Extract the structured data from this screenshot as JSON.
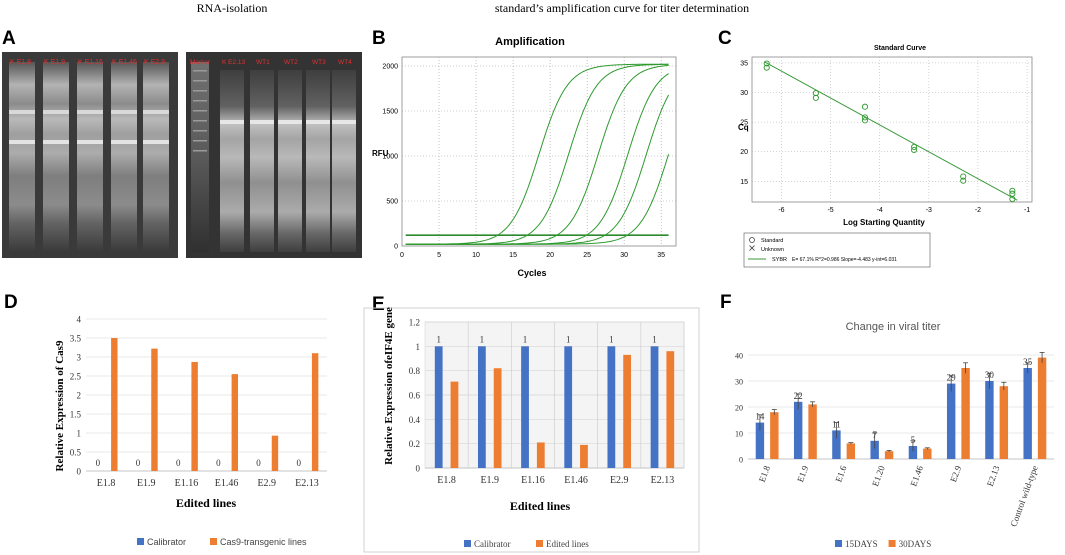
{
  "headers": {
    "rna": "RNA-isolation",
    "standard": "standard’s amplification curve for titer determination"
  },
  "panel_letters": [
    "A",
    "B",
    "C",
    "D",
    "E",
    "F"
  ],
  "gel": {
    "left_lane_labels": [
      "K E1.8",
      "K E1.9",
      "K E1.16",
      "K E1.46",
      "K E2.9"
    ],
    "right_lane_labels": [
      "Marker",
      "K E2.13",
      "WT1",
      "WT2",
      "WT3",
      "WT4"
    ]
  },
  "chart_data": [
    {
      "id": "B",
      "type": "line",
      "title": "Amplification",
      "xlabel": "Cycles",
      "ylabel": "RFU",
      "xlim": [
        0,
        37
      ],
      "ylim": [
        0,
        2100
      ],
      "xticks": [
        0,
        5,
        10,
        15,
        20,
        25,
        30,
        35
      ],
      "yticks": [
        0,
        500,
        1000,
        1500,
        2000
      ],
      "threshold": 120,
      "series_midpoints": [
        18.5,
        22.5,
        26.5,
        30.5,
        33.0,
        36.0
      ],
      "series_plateau": 2020
    },
    {
      "id": "C",
      "type": "scatter",
      "title": "Standard Curve",
      "xlabel": "Log Starting Quantity",
      "ylabel": "Cq",
      "xlim": [
        -6.6,
        -0.9
      ],
      "ylim": [
        11.5,
        36
      ],
      "xticks": [
        -6,
        -5,
        -4,
        -3,
        -2,
        -1
      ],
      "yticks": [
        15,
        20,
        25,
        30,
        35
      ],
      "points": [
        [
          -6.3,
          34.9
        ],
        [
          -6.3,
          34.2
        ],
        [
          -5.3,
          29.9
        ],
        [
          -5.3,
          29.1
        ],
        [
          -4.3,
          27.6
        ],
        [
          -4.3,
          25.8
        ],
        [
          -4.3,
          25.3
        ],
        [
          -3.3,
          20.8
        ],
        [
          -3.3,
          20.3
        ],
        [
          -2.3,
          15.8
        ],
        [
          -2.3,
          15.1
        ],
        [
          -1.3,
          13.4
        ],
        [
          -1.3,
          12.9
        ],
        [
          -1.3,
          12.0
        ]
      ],
      "fit": [
        [
          -6.35,
          35.2
        ],
        [
          -1.2,
          11.8
        ]
      ],
      "legend": {
        "standard": "Standard",
        "unknown": "Unknown",
        "fit_name": "SYBR",
        "fit_text": "E= 67.1% R^2=0.986 Slope=-4.483 y-int=6.031"
      }
    },
    {
      "id": "D",
      "type": "bar",
      "xlabel": "Edited lines",
      "ylabel": "Relative Expression of Cas9",
      "ylim": [
        0,
        4
      ],
      "yticks": [
        "0",
        "0.5",
        "1",
        "1.5",
        "2",
        "2.5",
        "3",
        "3.5",
        "4"
      ],
      "categories": [
        "E1.8",
        "E1.9",
        "E1.16",
        "E1.46",
        "E2.9",
        "E2.13"
      ],
      "series": [
        {
          "name": "Calibrator",
          "color": "#4472C4",
          "values": [
            0,
            0,
            0,
            0,
            0,
            0
          ],
          "labels": [
            "0",
            "0",
            "0",
            "0",
            "0",
            "0"
          ]
        },
        {
          "name": "Cas9-transgenic lines",
          "color": "#ED7D31",
          "values": [
            3.5,
            3.22,
            2.87,
            2.55,
            0.93,
            3.1
          ]
        }
      ]
    },
    {
      "id": "E",
      "type": "bar",
      "xlabel": "Edited lines",
      "ylabel": "Relative Expression ofeIF4E gene",
      "ylim": [
        0,
        1.2
      ],
      "yticks": [
        "0",
        "0.2",
        "0.4",
        "0.6",
        "0.8",
        "1",
        "1.2"
      ],
      "categories": [
        "E1.8",
        "E1.9",
        "E1.16",
        "E1.46",
        "E2.9",
        "E2.13"
      ],
      "series": [
        {
          "name": "Calibrator",
          "color": "#4472C4",
          "values": [
            1,
            1,
            1,
            1,
            1,
            1
          ],
          "labels": [
            "1",
            "1",
            "1",
            "1",
            "1",
            "1"
          ]
        },
        {
          "name": "Edited lines",
          "color": "#ED7D31",
          "values": [
            0.71,
            0.82,
            0.21,
            0.19,
            0.93,
            0.96
          ]
        }
      ]
    },
    {
      "id": "F",
      "type": "bar",
      "title": "Change in viral titer",
      "ylim": [
        0,
        40
      ],
      "yticks": [
        "0",
        "10",
        "20",
        "30",
        "40"
      ],
      "categories": [
        "E1.8",
        "E1.9",
        "E1.6",
        "E1.20",
        "E1.46",
        "E2.9",
        "E2.13",
        "Control wild-type"
      ],
      "series": [
        {
          "name": "15DAYS",
          "color": "#4472C4",
          "values": [
            14,
            22,
            11,
            7,
            5,
            29,
            30,
            35
          ],
          "errors": [
            3,
            3,
            3,
            3,
            2,
            3,
            3,
            2
          ],
          "labels": [
            "14",
            "22",
            "11",
            "7",
            "5",
            "29",
            "30",
            "35"
          ]
        },
        {
          "name": "30DAYS",
          "color": "#ED7D31",
          "values": [
            18,
            21,
            6,
            3,
            4,
            35,
            28,
            39
          ],
          "errors": [
            1,
            1,
            0.3,
            0.3,
            0.3,
            2,
            1.5,
            2
          ]
        }
      ]
    }
  ]
}
